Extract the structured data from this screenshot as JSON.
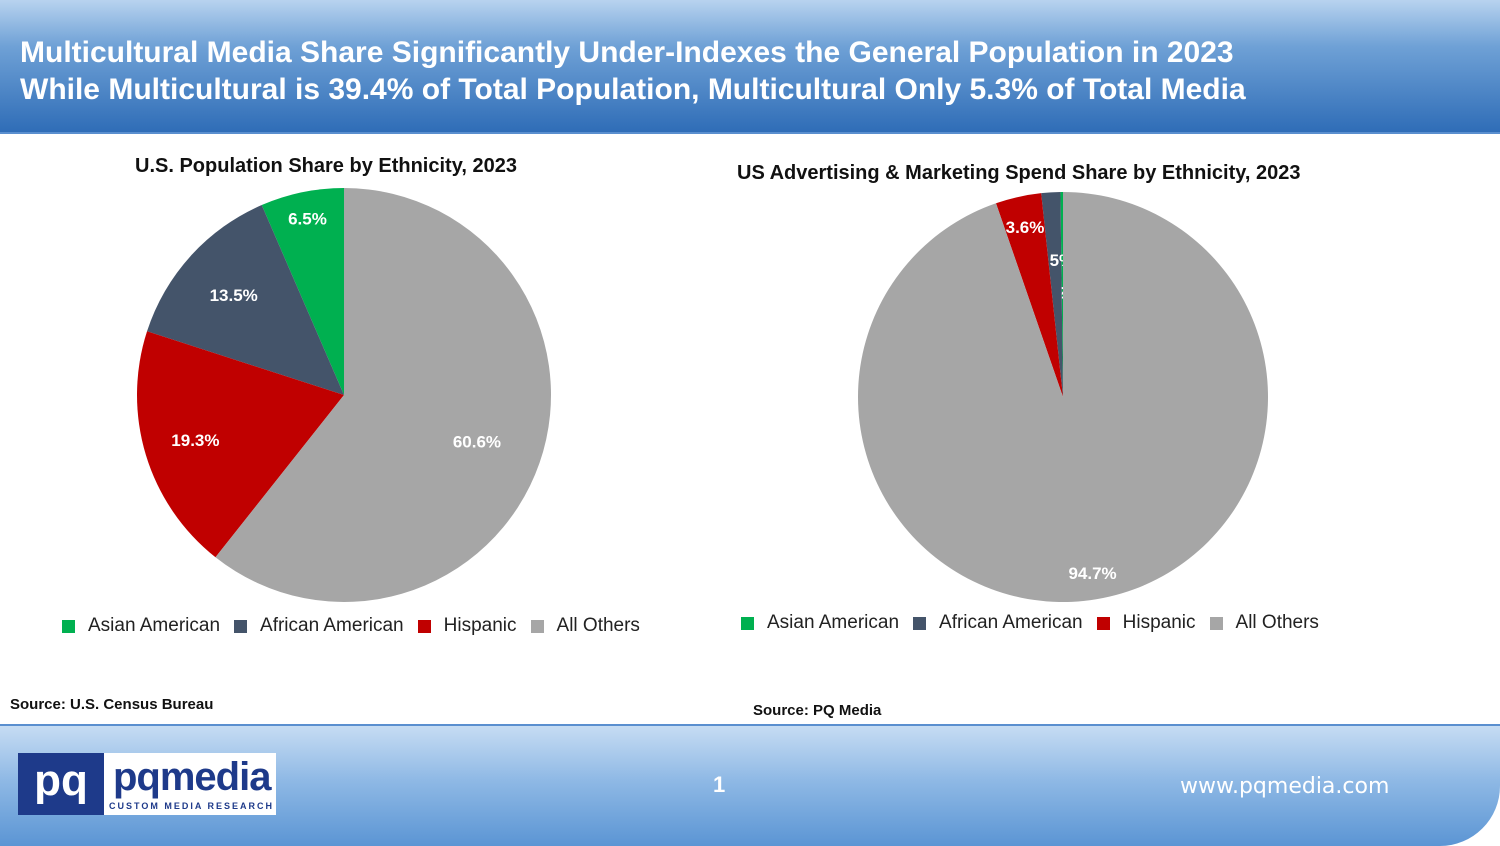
{
  "header": {
    "line1": "Multicultural Media Share Significantly Under-Indexes the General Population in 2023",
    "line2": "While Multicultural is 39.4% of Total Population, Multicultural Only 5.3% of Total Media"
  },
  "chart_data": [
    {
      "type": "pie",
      "title": "U.S. Population Share by Ethnicity, 2023",
      "categories": [
        "Asian American",
        "African American",
        "Hispanic",
        "All Others"
      ],
      "values": [
        6.5,
        13.5,
        19.3,
        60.6
      ],
      "data_labels": [
        "6.5%",
        "13.5%",
        "19.3%",
        "60.6%"
      ],
      "colors": [
        "#00b050",
        "#44546a",
        "#c00000",
        "#a6a6a6"
      ],
      "legend_position": "bottom",
      "source": "Source: U.S. Census Bureau"
    },
    {
      "type": "pie",
      "title": "US Advertising & Marketing Spend Share by Ethnicity, 2023",
      "categories": [
        "Asian American",
        "African American",
        "Hispanic",
        "All Others"
      ],
      "values": [
        0.2,
        1.5,
        3.6,
        94.7
      ],
      "data_labels": [
        "0.2%",
        "1.5%",
        "3.6%",
        "94.7%"
      ],
      "colors": [
        "#00b050",
        "#44546a",
        "#c00000",
        "#a6a6a6"
      ],
      "legend_position": "bottom",
      "source": "Source: PQ Media"
    }
  ],
  "footer": {
    "logo_box_text": "pq",
    "logo_word": "pqmedia",
    "logo_tagline": "CUSTOM MEDIA RESEARCH",
    "page_number": "1",
    "url": "www.pqmedia.com"
  }
}
